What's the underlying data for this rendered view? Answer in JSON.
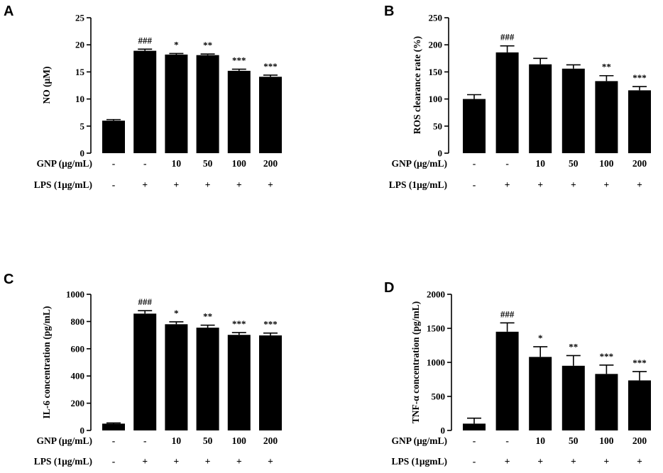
{
  "chart_data": [
    {
      "panel": "A",
      "type": "bar",
      "ylabel": "NO (μM)",
      "ylim": [
        0,
        25
      ],
      "yticks": [
        0,
        5,
        10,
        15,
        20,
        25
      ],
      "values": [
        6.0,
        18.9,
        18.2,
        18.1,
        15.2,
        14.1
      ],
      "errors": [
        0.2,
        0.3,
        0.2,
        0.2,
        0.3,
        0.3
      ],
      "significance": [
        "",
        "###",
        "*",
        "**",
        "***",
        "***"
      ],
      "rows": [
        {
          "label": "GNP (μg/mL)",
          "values": [
            "-",
            "-",
            "10",
            "50",
            "100",
            "200"
          ]
        },
        {
          "label": "LPS (1μg/mL)",
          "values": [
            "-",
            "+",
            "+",
            "+",
            "+",
            "+"
          ]
        }
      ]
    },
    {
      "panel": "B",
      "type": "bar",
      "ylabel": "ROS clearance rate (%)",
      "ylim": [
        0,
        250
      ],
      "yticks": [
        0,
        50,
        100,
        150,
        200,
        250
      ],
      "values": [
        100,
        186,
        164,
        156,
        133,
        116
      ],
      "errors": [
        8,
        12,
        11,
        7,
        10,
        7
      ],
      "significance": [
        "",
        "###",
        "",
        "",
        "**",
        "***"
      ],
      "rows": [
        {
          "label": "GNP (μg/mL)",
          "values": [
            "-",
            "-",
            "10",
            "50",
            "100",
            "200"
          ]
        },
        {
          "label": "LPS (1μg/mL)",
          "values": [
            "-",
            "+",
            "+",
            "+",
            "+",
            "+"
          ]
        }
      ]
    },
    {
      "panel": "C",
      "type": "bar",
      "ylabel": "IL-6 concentration (pg/mL)",
      "ylim": [
        0,
        1000
      ],
      "yticks": [
        0,
        200,
        400,
        600,
        800,
        1000
      ],
      "values": [
        50,
        858,
        780,
        755,
        702,
        698
      ],
      "errors": [
        5,
        22,
        18,
        18,
        17,
        17
      ],
      "significance": [
        "",
        "###",
        "*",
        "**",
        "***",
        "***"
      ],
      "rows": [
        {
          "label": "GNP (μg/mL)",
          "values": [
            "-",
            "-",
            "10",
            "50",
            "100",
            "200"
          ]
        },
        {
          "label": "LPS (1μg/mL)",
          "values": [
            "-",
            "+",
            "+",
            "+",
            "+",
            "+"
          ]
        }
      ]
    },
    {
      "panel": "D",
      "type": "bar",
      "ylabel": "TNF-α concentration (pg/mL)",
      "ylim": [
        0,
        2000
      ],
      "yticks": [
        0,
        500,
        1000,
        1500,
        2000
      ],
      "values": [
        100,
        1450,
        1080,
        950,
        830,
        735
      ],
      "errors": [
        80,
        130,
        150,
        150,
        130,
        130
      ],
      "significance": [
        "",
        "###",
        "*",
        "**",
        "***",
        "***"
      ],
      "rows": [
        {
          "label": "GNP (μg/mL)",
          "values": [
            "-",
            "-",
            "10",
            "50",
            "100",
            "200"
          ]
        },
        {
          "label": "LPS (1μgmL)",
          "values": [
            "-",
            "+",
            "+",
            "+",
            "+",
            "+"
          ]
        }
      ]
    }
  ]
}
